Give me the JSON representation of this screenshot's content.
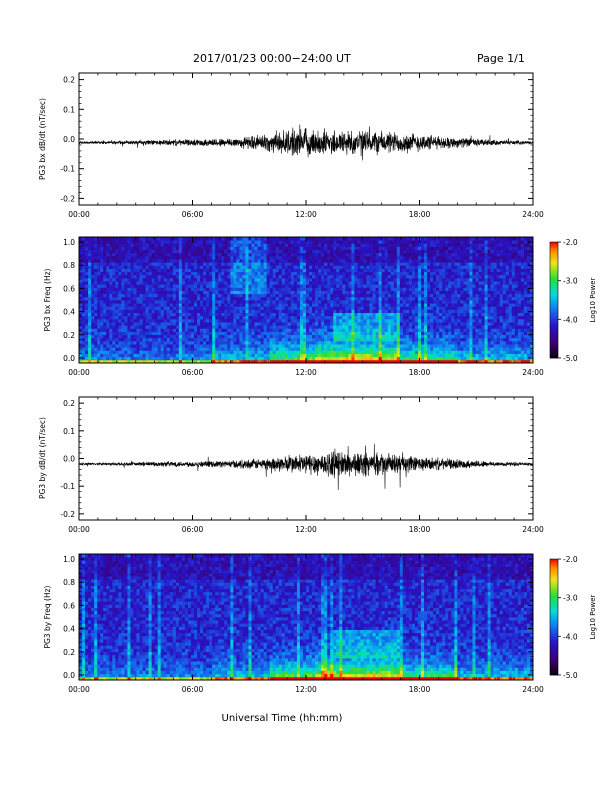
{
  "header": {
    "title": "2017/01/23  00:00−24:00 UT",
    "page": "Page 1/1"
  },
  "chart_data": [
    {
      "type": "line",
      "ylabel": "PG3 bx dB/dt (nT/sec)",
      "ylim": [
        -0.2,
        0.2
      ],
      "yticks": [
        "0.2",
        "0.1",
        "0.0",
        "-0.1",
        "-0.2"
      ],
      "xticks": [
        "00:00",
        "06:00",
        "12:00",
        "18:00",
        "24:00"
      ],
      "xrange_hours": [
        0,
        24
      ],
      "baseline": -0.012,
      "series": [
        {
          "x_hours": [
            0,
            1,
            2,
            3,
            4,
            5,
            6,
            7,
            8,
            9,
            10,
            11,
            12,
            13,
            14,
            15,
            16,
            17,
            18,
            19,
            20,
            21,
            22,
            23,
            24
          ],
          "envelope": [
            0.005,
            0.005,
            0.006,
            0.008,
            0.01,
            0.012,
            0.012,
            0.015,
            0.018,
            0.025,
            0.035,
            0.05,
            0.055,
            0.05,
            0.05,
            0.05,
            0.045,
            0.04,
            0.035,
            0.025,
            0.02,
            0.015,
            0.01,
            0.008,
            0.006
          ]
        }
      ]
    },
    {
      "type": "heatmap",
      "ylabel": "PG3 bx Freq (Hz)",
      "ylim": [
        0,
        1.0
      ],
      "yticks": [
        "1.0",
        "0.8",
        "0.6",
        "0.4",
        "0.2",
        "0.0"
      ],
      "xticks": [
        "00:00",
        "06:00",
        "12:00",
        "18:00",
        "24:00"
      ],
      "colorbar": {
        "label": "Log10 Power",
        "ticks": [
          "-2.0",
          "-3.0",
          "-4.0",
          "-5.0"
        ],
        "range": [
          -5.0,
          -2.0
        ]
      }
    },
    {
      "type": "line",
      "ylabel": "PG3 by dB/dt (nT/sec)",
      "ylim": [
        -0.2,
        0.2
      ],
      "yticks": [
        "0.2",
        "0.1",
        "0.0",
        "-0.1",
        "-0.2"
      ],
      "xticks": [
        "00:00",
        "06:00",
        "12:00",
        "18:00",
        "24:00"
      ],
      "xrange_hours": [
        0,
        24
      ],
      "baseline": -0.02,
      "series": [
        {
          "x_hours": [
            0,
            1,
            2,
            3,
            4,
            5,
            6,
            7,
            8,
            9,
            10,
            11,
            12,
            13,
            14,
            15,
            16,
            17,
            18,
            19,
            20,
            21,
            22,
            23,
            24
          ],
          "envelope": [
            0.005,
            0.005,
            0.006,
            0.008,
            0.01,
            0.012,
            0.012,
            0.012,
            0.015,
            0.02,
            0.025,
            0.035,
            0.045,
            0.05,
            0.055,
            0.05,
            0.045,
            0.04,
            0.03,
            0.025,
            0.02,
            0.015,
            0.01,
            0.008,
            0.006
          ]
        }
      ]
    },
    {
      "type": "heatmap",
      "ylabel": "PG3 by Freq (Hz)",
      "ylim": [
        0,
        1.0
      ],
      "yticks": [
        "1.0",
        "0.8",
        "0.6",
        "0.4",
        "0.2",
        "0.0"
      ],
      "xticks": [
        "00:00",
        "06:00",
        "12:00",
        "18:00",
        "24:00"
      ],
      "colorbar": {
        "label": "Log10 Power",
        "ticks": [
          "-2.0",
          "-3.0",
          "-4.0",
          "-5.0"
        ],
        "range": [
          -5.0,
          -2.0
        ]
      }
    }
  ],
  "footer": {
    "xlabel": "Universal Time (hh:mm)"
  }
}
